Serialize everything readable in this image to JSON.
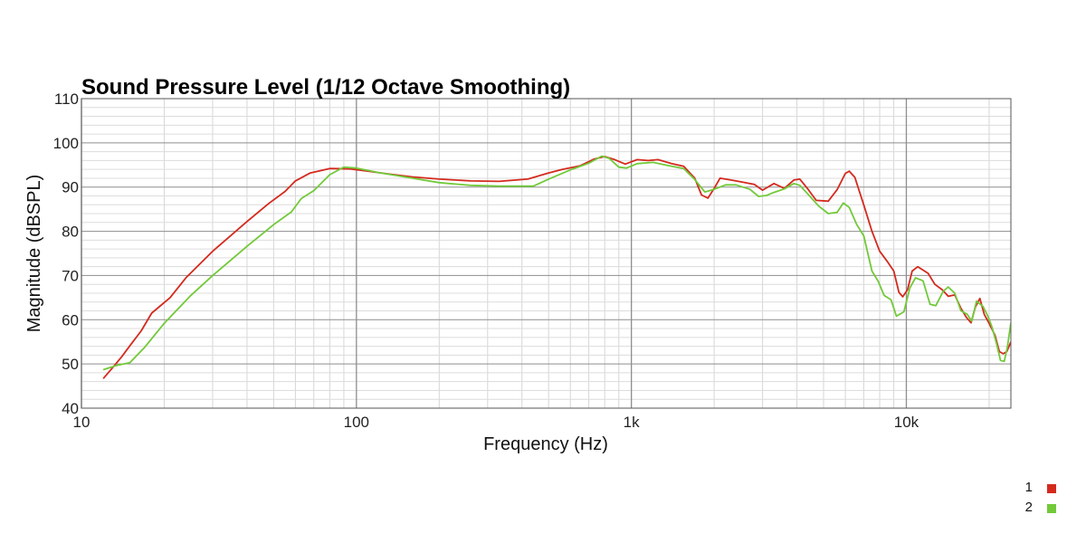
{
  "chart_data": {
    "type": "line",
    "title": "Sound Pressure Level (1/12 Octave Smoothing)",
    "xlabel": "Frequency (Hz)",
    "ylabel": "Magnitude (dBSPL)",
    "xscale": "log",
    "xlim": [
      10,
      24000
    ],
    "ylim": [
      40,
      110
    ],
    "x_ticks": [
      {
        "value": 10,
        "label": "10"
      },
      {
        "value": 100,
        "label": "100"
      },
      {
        "value": 1000,
        "label": "1k"
      },
      {
        "value": 10000,
        "label": "10k"
      }
    ],
    "y_ticks": [
      40,
      50,
      60,
      70,
      80,
      90,
      100,
      110
    ],
    "grid": true,
    "legend_position": "bottom-right",
    "series": [
      {
        "name": "1",
        "color": "#d42a1e",
        "points": [
          [
            12,
            46.7
          ],
          [
            13,
            49.2
          ],
          [
            14,
            51.6
          ],
          [
            15,
            54.1
          ],
          [
            16.5,
            57.5
          ],
          [
            18,
            61.5
          ],
          [
            21,
            65.0
          ],
          [
            24,
            69.5
          ],
          [
            30,
            75.5
          ],
          [
            40,
            82.2
          ],
          [
            48,
            86.3
          ],
          [
            55,
            89.0
          ],
          [
            60,
            91.4
          ],
          [
            68,
            93.2
          ],
          [
            80,
            94.2
          ],
          [
            95,
            94.1
          ],
          [
            110,
            93.6
          ],
          [
            130,
            93.0
          ],
          [
            160,
            92.3
          ],
          [
            200,
            91.8
          ],
          [
            260,
            91.4
          ],
          [
            330,
            91.3
          ],
          [
            420,
            91.8
          ],
          [
            500,
            93.2
          ],
          [
            560,
            94.0
          ],
          [
            650,
            94.8
          ],
          [
            730,
            96.3
          ],
          [
            800,
            96.9
          ],
          [
            870,
            96.2
          ],
          [
            950,
            95.2
          ],
          [
            1050,
            96.2
          ],
          [
            1150,
            96.0
          ],
          [
            1250,
            96.2
          ],
          [
            1400,
            95.3
          ],
          [
            1550,
            94.7
          ],
          [
            1700,
            92.0
          ],
          [
            1800,
            88.2
          ],
          [
            1900,
            87.5
          ],
          [
            2000,
            89.7
          ],
          [
            2100,
            92.0
          ],
          [
            2300,
            91.6
          ],
          [
            2500,
            91.2
          ],
          [
            2800,
            90.6
          ],
          [
            3000,
            89.3
          ],
          [
            3300,
            90.8
          ],
          [
            3600,
            89.7
          ],
          [
            3900,
            91.6
          ],
          [
            4100,
            91.8
          ],
          [
            4400,
            89.4
          ],
          [
            4700,
            87.0
          ],
          [
            5200,
            86.8
          ],
          [
            5600,
            89.4
          ],
          [
            6000,
            93.1
          ],
          [
            6200,
            93.6
          ],
          [
            6500,
            92.2
          ],
          [
            7000,
            86.0
          ],
          [
            7500,
            80.0
          ],
          [
            8000,
            75.5
          ],
          [
            8500,
            73.3
          ],
          [
            9000,
            71.0
          ],
          [
            9400,
            66.2
          ],
          [
            9700,
            65.2
          ],
          [
            10100,
            66.8
          ],
          [
            10500,
            71.0
          ],
          [
            11000,
            72.0
          ],
          [
            12000,
            70.5
          ],
          [
            12700,
            68.0
          ],
          [
            13500,
            66.8
          ],
          [
            14200,
            65.3
          ],
          [
            15000,
            65.6
          ],
          [
            15800,
            62.6
          ],
          [
            16500,
            60.6
          ],
          [
            17200,
            59.3
          ],
          [
            17800,
            62.8
          ],
          [
            18500,
            64.8
          ],
          [
            19200,
            61.2
          ],
          [
            20000,
            59.2
          ],
          [
            21000,
            56.5
          ],
          [
            21800,
            52.8
          ],
          [
            22500,
            52.3
          ],
          [
            23200,
            52.8
          ],
          [
            24000,
            55.0
          ]
        ]
      },
      {
        "name": "2",
        "color": "#72c93a",
        "points": [
          [
            12,
            48.7
          ],
          [
            13.5,
            49.7
          ],
          [
            15,
            50.3
          ],
          [
            17,
            53.8
          ],
          [
            20,
            59.2
          ],
          [
            25,
            65.5
          ],
          [
            30,
            70.0
          ],
          [
            40,
            76.6
          ],
          [
            50,
            81.5
          ],
          [
            58,
            84.4
          ],
          [
            63,
            87.4
          ],
          [
            70,
            89.2
          ],
          [
            80,
            92.8
          ],
          [
            90,
            94.5
          ],
          [
            100,
            94.3
          ],
          [
            120,
            93.3
          ],
          [
            150,
            92.3
          ],
          [
            200,
            91.0
          ],
          [
            260,
            90.4
          ],
          [
            330,
            90.2
          ],
          [
            440,
            90.2
          ],
          [
            500,
            91.8
          ],
          [
            600,
            93.9
          ],
          [
            700,
            95.4
          ],
          [
            780,
            97.0
          ],
          [
            830,
            96.5
          ],
          [
            900,
            94.5
          ],
          [
            960,
            94.3
          ],
          [
            1050,
            95.3
          ],
          [
            1200,
            95.6
          ],
          [
            1350,
            94.9
          ],
          [
            1550,
            94.2
          ],
          [
            1700,
            91.7
          ],
          [
            1850,
            88.9
          ],
          [
            2000,
            89.5
          ],
          [
            2200,
            90.5
          ],
          [
            2400,
            90.5
          ],
          [
            2700,
            89.5
          ],
          [
            2900,
            87.9
          ],
          [
            3100,
            88.1
          ],
          [
            3300,
            88.8
          ],
          [
            3600,
            89.6
          ],
          [
            3900,
            90.8
          ],
          [
            4100,
            90.4
          ],
          [
            4400,
            88.3
          ],
          [
            4800,
            85.7
          ],
          [
            5200,
            84.0
          ],
          [
            5600,
            84.3
          ],
          [
            5900,
            86.4
          ],
          [
            6200,
            85.4
          ],
          [
            6600,
            81.5
          ],
          [
            7000,
            79.0
          ],
          [
            7500,
            71.0
          ],
          [
            7900,
            68.7
          ],
          [
            8300,
            65.5
          ],
          [
            8800,
            64.5
          ],
          [
            9200,
            60.8
          ],
          [
            9800,
            61.8
          ],
          [
            10300,
            67.2
          ],
          [
            10800,
            69.5
          ],
          [
            11500,
            68.8
          ],
          [
            12200,
            63.5
          ],
          [
            12800,
            63.2
          ],
          [
            13600,
            66.4
          ],
          [
            14200,
            67.4
          ],
          [
            15000,
            66.0
          ],
          [
            15800,
            62.0
          ],
          [
            16600,
            61.3
          ],
          [
            17300,
            59.7
          ],
          [
            18000,
            64.2
          ],
          [
            19000,
            63.0
          ],
          [
            19800,
            60.8
          ],
          [
            20500,
            58.3
          ],
          [
            21300,
            54.5
          ],
          [
            22000,
            50.8
          ],
          [
            22700,
            50.6
          ],
          [
            23300,
            53.8
          ],
          [
            24000,
            59.3
          ]
        ]
      }
    ]
  }
}
